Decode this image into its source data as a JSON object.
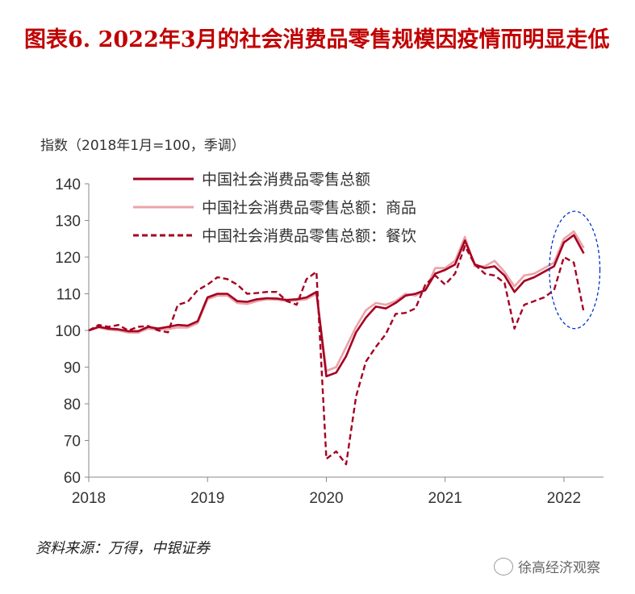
{
  "header": {
    "title": "图表6. 2022年3月的社会消费品零售规模因疫情而明显走低"
  },
  "footer": {
    "source": "资料来源：万得，中银证券",
    "watermark": "徐高经济观察"
  },
  "colors": {
    "total": "#a50021",
    "goods": "#eba3a8",
    "catering": "#a50021",
    "highlight": "#0033cc"
  },
  "chart_data": {
    "type": "line",
    "ylabel": "指数（2018年1月=100，季调）",
    "ylim": [
      60,
      140
    ],
    "yticks": [
      60,
      70,
      80,
      90,
      100,
      110,
      120,
      130,
      140
    ],
    "xlim": [
      "2018-01",
      "2022-05"
    ],
    "xticks": [
      "2018",
      "2019",
      "2020",
      "2021",
      "2022"
    ],
    "x": [
      "2018-01",
      "2018-02",
      "2018-03",
      "2018-04",
      "2018-05",
      "2018-06",
      "2018-07",
      "2018-08",
      "2018-09",
      "2018-10",
      "2018-11",
      "2018-12",
      "2019-01",
      "2019-02",
      "2019-03",
      "2019-04",
      "2019-05",
      "2019-06",
      "2019-07",
      "2019-08",
      "2019-09",
      "2019-10",
      "2019-11",
      "2019-12",
      "2020-01",
      "2020-02",
      "2020-03",
      "2020-04",
      "2020-05",
      "2020-06",
      "2020-07",
      "2020-08",
      "2020-09",
      "2020-10",
      "2020-11",
      "2020-12",
      "2021-01",
      "2021-02",
      "2021-03",
      "2021-04",
      "2021-05",
      "2021-06",
      "2021-07",
      "2021-08",
      "2021-09",
      "2021-10",
      "2021-11",
      "2021-12",
      "2022-01",
      "2022-02",
      "2022-03"
    ],
    "series": [
      {
        "name": "中国社会消费品零售总额",
        "style": "solid",
        "values": [
          100,
          101,
          100.5,
          100.3,
          99.8,
          99.8,
          101,
          100.5,
          101,
          101.5,
          101.3,
          102.5,
          109,
          110,
          110,
          108,
          107.8,
          108.5,
          108.8,
          108.7,
          108.3,
          108.5,
          109,
          110.5,
          87.5,
          88.5,
          93,
          99.5,
          103.5,
          106.5,
          106,
          107.5,
          109.5,
          110,
          111,
          115.5,
          116.5,
          118,
          124.5,
          118,
          117,
          117.5,
          115,
          110.5,
          113.5,
          114.5,
          116,
          117.5,
          124,
          126,
          121
        ]
      },
      {
        "name": "中国社会消费品零售总额：商品",
        "style": "solid",
        "values": [
          100,
          100.8,
          100.2,
          100,
          99.4,
          99.4,
          100.5,
          100.2,
          100.4,
          100.8,
          100.8,
          102,
          108.5,
          109.5,
          109.5,
          107.5,
          107.2,
          108,
          108.5,
          108.4,
          108,
          108.2,
          108.5,
          110,
          89,
          90,
          95.5,
          101,
          105.5,
          107.5,
          107,
          108,
          110,
          109.5,
          111,
          117,
          117,
          119,
          125.5,
          117.5,
          117.5,
          119,
          116,
          112,
          115,
          115.5,
          117,
          118.5,
          125,
          127,
          122.5
        ]
      },
      {
        "name": "中国社会消费品零售总额：餐饮",
        "style": "dashed",
        "values": [
          100,
          101.5,
          101,
          101.5,
          100,
          101,
          101.2,
          100,
          99.5,
          107,
          107.8,
          111,
          112.5,
          114.5,
          114,
          112.5,
          110,
          110.2,
          110.5,
          110.5,
          108,
          107,
          114,
          116,
          65,
          67,
          63.5,
          82,
          91.5,
          95.5,
          99,
          104.5,
          104.8,
          106,
          112.5,
          115,
          112.5,
          115.5,
          123,
          118,
          115.5,
          115,
          113,
          100.5,
          107,
          108,
          109,
          111,
          120,
          118.5,
          105
        ]
      }
    ],
    "annotations": [
      {
        "type": "ellipse",
        "style": "dashed",
        "around": [
          "2022-01",
          "2022-03"
        ]
      }
    ],
    "legend_position": "top-center",
    "grid": false
  }
}
